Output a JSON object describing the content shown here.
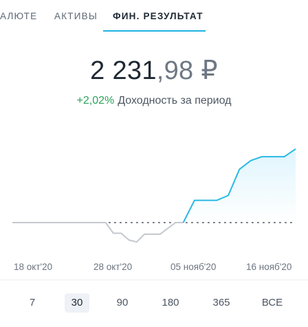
{
  "tabs": [
    {
      "label": "АЛЮТЕ",
      "active": false
    },
    {
      "label": "АКТИВЫ",
      "active": false
    },
    {
      "label": "ФИН. РЕЗУЛЬТАТ",
      "active": true
    }
  ],
  "result": {
    "amount_int": "2 231",
    "amount_dec": ",98 ₽",
    "percent": "+2,02%",
    "percent_label": "Доходность за период"
  },
  "chart_data": {
    "type": "line",
    "baseline": 0,
    "x_labels": [
      "18 окт'20",
      "28 окт'20",
      "05 нояб'20",
      "16 нояб'20"
    ],
    "series": [
      {
        "values": [
          0,
          0,
          0,
          0,
          0,
          0,
          0,
          0,
          0,
          0,
          0,
          0,
          0,
          -0.11,
          -0.11,
          -0.18,
          -0.2,
          -0.12,
          -0.12,
          -0.12,
          -0.06,
          0,
          0
        ]
      },
      {
        "values": [
          0,
          0.23,
          0.23,
          0.23,
          0.28,
          0.55,
          0.64,
          0.68,
          0.68,
          0.68,
          0.76
        ]
      }
    ],
    "colors": {
      "negative": "#c3c8ce",
      "positive": "#29b8e5"
    }
  },
  "periods": [
    {
      "label": "7",
      "active": false
    },
    {
      "label": "30",
      "active": true
    },
    {
      "label": "90",
      "active": false
    },
    {
      "label": "180",
      "active": false
    },
    {
      "label": "365",
      "active": false
    },
    {
      "label": "ВСЕ",
      "active": false
    }
  ]
}
